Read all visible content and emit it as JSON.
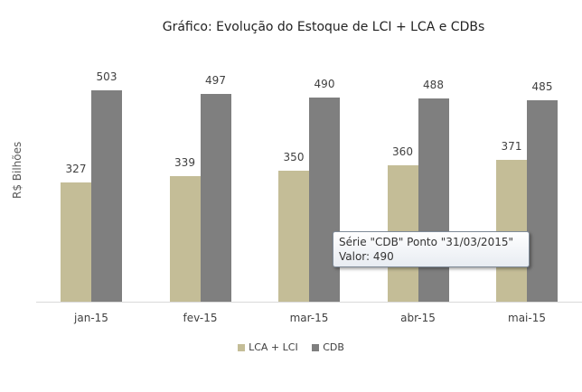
{
  "chart_data": {
    "type": "bar",
    "title": "Gráfico: Evolução do Estoque de LCI + LCA e CDBs",
    "xlabel": "",
    "ylabel": "R$ Bilhões",
    "categories": [
      "jan-15",
      "fev-15",
      "mar-15",
      "abr-15",
      "mai-15"
    ],
    "series": [
      {
        "name": "LCA + LCI",
        "color": "#c4bd97",
        "values": [
          327,
          339,
          350,
          360,
          371
        ]
      },
      {
        "name": "CDB",
        "color": "#7f7f7f",
        "values": [
          503,
          497,
          490,
          488,
          485
        ]
      }
    ],
    "ylim": [
      100,
      560
    ],
    "grid": false,
    "legend_position": "bottom",
    "data_labels": true
  },
  "tooltip": {
    "line1": "Série \"CDB\" Ponto \"31/03/2015\"",
    "line2": "Valor:  490"
  }
}
